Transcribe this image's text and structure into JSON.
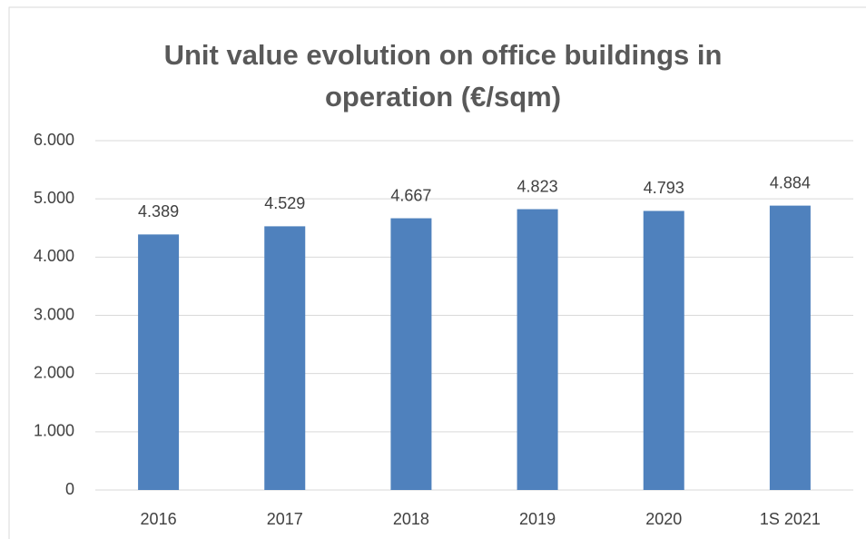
{
  "chart_data": {
    "type": "bar",
    "title": "Unit value evolution on office buildings in operation (€/sqm)",
    "categories": [
      "2016",
      "2017",
      "2018",
      "2019",
      "2020",
      "1S 2021"
    ],
    "values": [
      4389,
      4529,
      4667,
      4823,
      4793,
      4884
    ],
    "value_labels": [
      "4.389",
      "4.529",
      "4.667",
      "4.823",
      "4.793",
      "4.884"
    ],
    "color": "#4f81bd",
    "ylim": [
      0,
      6000
    ],
    "yticks": [
      0,
      {
        "value": 1000,
        "label": "1.000"
      },
      {
        "value": 2000,
        "label": "2.000"
      },
      {
        "value": 3000,
        "label": "3.000"
      },
      {
        "value": 4000,
        "label": "4.000"
      },
      {
        "value": 5000,
        "label": "5.000"
      },
      {
        "value": 6000,
        "label": "6.000"
      }
    ],
    "grid": true
  }
}
